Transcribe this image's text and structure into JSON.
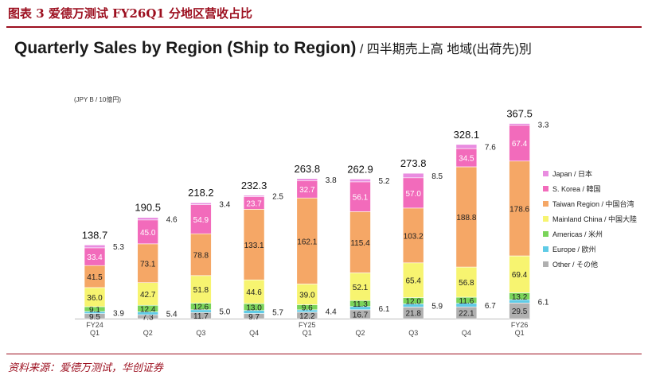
{
  "figure_title": "图表 3   爱德万测试 FY26Q1 分地区营收占比",
  "source": "资料来源：爱德万测试，华创证券",
  "colors": {
    "accent": "#9c0f1f",
    "japan": "#e98ce0",
    "korea": "#f26bbb",
    "taiwan": "#f5a766",
    "china": "#f7f470",
    "americas": "#7ad45a",
    "europe": "#5fcbe6",
    "other": "#b0b0b0"
  },
  "chart_data": {
    "type": "bar",
    "stacked": true,
    "title": "Quarterly Sales by Region (Ship to Region)",
    "subtitle": " / 四半期売上高  地域(出荷先)別",
    "unit_label": "(JPY B / 10億円)",
    "categories": [
      {
        "line1": "FY24",
        "line2": "Q1"
      },
      {
        "line1": "",
        "line2": "Q2"
      },
      {
        "line1": "",
        "line2": "Q3"
      },
      {
        "line1": "",
        "line2": "Q4"
      },
      {
        "line1": "FY25",
        "line2": "Q1"
      },
      {
        "line1": "",
        "line2": "Q2"
      },
      {
        "line1": "",
        "line2": "Q3"
      },
      {
        "line1": "",
        "line2": "Q4"
      },
      {
        "line1": "FY26",
        "line2": "Q1"
      }
    ],
    "totals": [
      "138.7",
      "190.5",
      "218.2",
      "232.3",
      "263.8",
      "262.9",
      "273.8",
      "328.1",
      "367.5"
    ],
    "series": [
      {
        "name": "Other / その他",
        "color_key": "other",
        "values": [
          9.5,
          7.3,
          11.7,
          9.7,
          12.2,
          16.7,
          21.8,
          22.1,
          29.5
        ]
      },
      {
        "name": "Europe / 欧州",
        "color_key": "europe",
        "values": [
          3.9,
          5.4,
          5.0,
          5.7,
          4.4,
          6.1,
          5.9,
          6.7,
          6.1
        ]
      },
      {
        "name": "Americas / 米州",
        "color_key": "americas",
        "values": [
          9.1,
          12.4,
          12.6,
          13.0,
          9.6,
          11.3,
          12.0,
          11.6,
          13.2
        ]
      },
      {
        "name": "Mainland China / 中国大陸",
        "color_key": "china",
        "values": [
          36.0,
          42.7,
          51.8,
          44.6,
          39.0,
          52.1,
          65.4,
          56.8,
          69.4
        ]
      },
      {
        "name": "Taiwan Region / 中国台湾",
        "color_key": "taiwan",
        "values": [
          41.5,
          73.1,
          78.8,
          133.1,
          162.1,
          115.4,
          103.2,
          188.8,
          178.6
        ]
      },
      {
        "name": "S. Korea / 韓国",
        "color_key": "korea",
        "values": [
          33.4,
          45.0,
          54.9,
          23.7,
          32.7,
          56.1,
          57.0,
          34.5,
          67.4
        ]
      },
      {
        "name": "Japan / 日本",
        "color_key": "japan",
        "values": [
          5.3,
          4.6,
          3.4,
          2.5,
          3.8,
          5.2,
          8.5,
          7.6,
          3.3
        ]
      }
    ],
    "legend_order": [
      "Japan / 日本",
      "S. Korea / 韓国",
      "Taiwan Region / 中国台湾",
      "Mainland China / 中国大陸",
      "Americas / 米州",
      "Europe / 欧州",
      "Other / その他"
    ],
    "legend_position": "right",
    "ylim": [
      0,
      400
    ],
    "grid": false
  }
}
